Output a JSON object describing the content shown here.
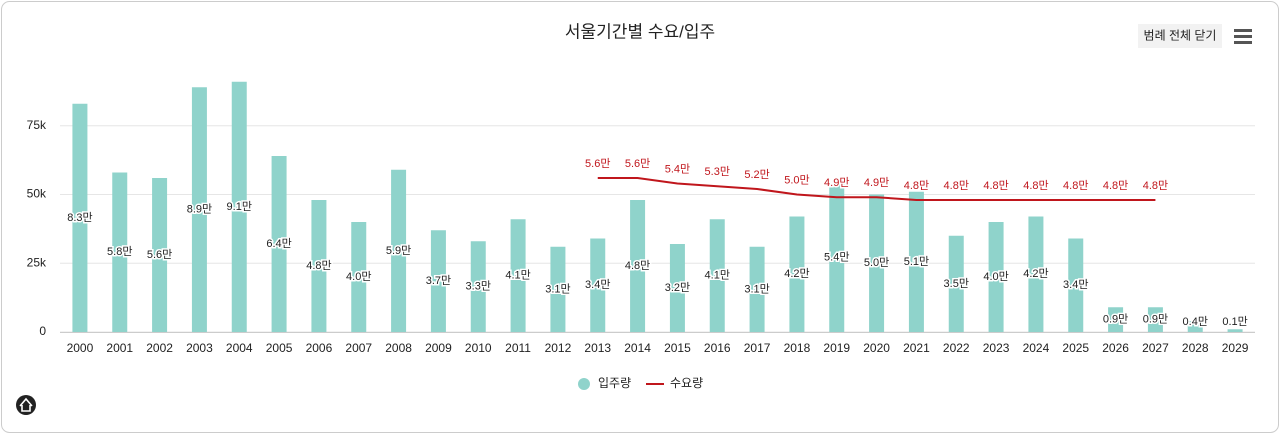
{
  "chart_data": {
    "type": "bar-line",
    "title": "서울기간별 수요/입주",
    "button": "범례 전체 닫기",
    "categories": [
      "2000",
      "2001",
      "2002",
      "2003",
      "2004",
      "2005",
      "2006",
      "2007",
      "2008",
      "2009",
      "2010",
      "2011",
      "2012",
      "2013",
      "2014",
      "2015",
      "2016",
      "2017",
      "2018",
      "2019",
      "2020",
      "2021",
      "2022",
      "2023",
      "2024",
      "2025",
      "2026",
      "2027",
      "2028",
      "2029"
    ],
    "series": [
      {
        "name": "입주량",
        "type": "bar",
        "color": "#8fd3cb",
        "values": [
          83000,
          58000,
          56000,
          89000,
          91000,
          64000,
          48000,
          40000,
          59000,
          37000,
          33000,
          41000,
          31000,
          34000,
          48000,
          32000,
          41000,
          31000,
          42000,
          54000,
          50000,
          51000,
          35000,
          40000,
          42000,
          34000,
          9000,
          9000,
          4000,
          1000
        ],
        "value_labels": [
          "8.3만",
          "5.8만",
          "5.6만",
          "8.9만",
          "9.1만",
          "6.4만",
          "4.8만",
          "4.0만",
          "5.9만",
          "3.7만",
          "3.3만",
          "4.1만",
          "3.1만",
          "3.4만",
          "4.8만",
          "3.2만",
          "4.1만",
          "3.1만",
          "4.2만",
          "5.4만",
          "5.0만",
          "5.1만",
          "3.5만",
          "4.0만",
          "4.2만",
          "3.4만",
          "0.9만",
          "0.9만",
          "0.4만",
          "0.1만"
        ]
      },
      {
        "name": "수요량",
        "type": "line",
        "color": "#c0161c",
        "values": [
          null,
          null,
          null,
          null,
          null,
          null,
          null,
          null,
          null,
          null,
          null,
          null,
          null,
          56000,
          56000,
          54000,
          53000,
          52000,
          50000,
          49000,
          49000,
          48000,
          48000,
          48000,
          48000,
          48000,
          48000,
          48000,
          null,
          null
        ],
        "value_labels": [
          null,
          null,
          null,
          null,
          null,
          null,
          null,
          null,
          null,
          null,
          null,
          null,
          null,
          "5.6만",
          "5.6만",
          "5.4만",
          "5.3만",
          "5.2만",
          "5.0만",
          "4.9만",
          "4.9만",
          "4.8만",
          "4.8만",
          "4.8만",
          "4.8만",
          "4.8만",
          "4.8만",
          "4.8만",
          null,
          null
        ]
      }
    ],
    "ylim": [
      0,
      100000
    ],
    "yticks": [
      0,
      {
        "value": 25000,
        "label": "25k"
      },
      {
        "value": 50000,
        "label": "50k"
      },
      {
        "value": 75000,
        "label": "75k"
      }
    ],
    "grid": true,
    "legend": "bottom"
  }
}
